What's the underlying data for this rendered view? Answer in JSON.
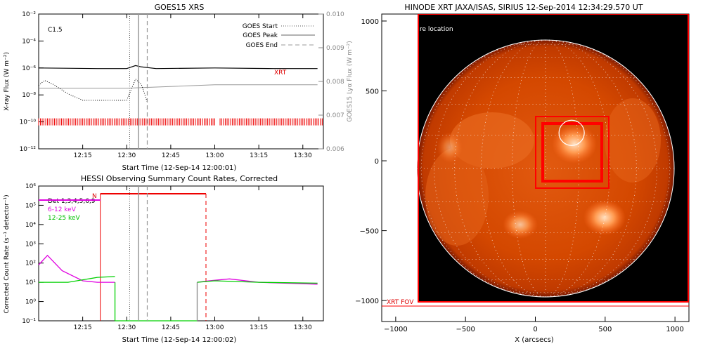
{
  "colors": {
    "red": "#ff0000",
    "magenta": "#e000e0",
    "green": "#00e000",
    "grey": "#888888",
    "sun_dark": "#000000",
    "sun_mid": "#d84400",
    "sun_bright": "#ffb070"
  },
  "chart_data": [
    {
      "type": "line",
      "title": "GOES15 XRS",
      "xlabel": "Start Time (12-Sep-14 12:00:01)",
      "ylabel": "X-ray Flux (W m⁻²)",
      "ylabel_right": "GOES15 Lyα Flux (W m⁻²)",
      "x_ticks": [
        "12:15",
        "12:30",
        "12:45",
        "13:00",
        "13:15",
        "13:30"
      ],
      "y_ticks": [
        "10⁻²",
        "10⁻⁴",
        "10⁻⁶",
        "10⁻⁸",
        "10⁻¹⁰",
        "10⁻¹²"
      ],
      "y_ticks_right": [
        "0.010",
        "0.009",
        "0.008",
        "0.007",
        "0.006"
      ],
      "ylim": [
        1e-12,
        0.01
      ],
      "ylim_right": [
        0.006,
        0.01
      ],
      "y_scale": "log",
      "annotation": "C1.5",
      "xrt_label": "XRT",
      "legend": [
        "GOES Start",
        "GOES Peak",
        "GOES End"
      ],
      "events": {
        "start": "12:31",
        "peak": "12:34",
        "end": "12:37"
      },
      "series": [
        {
          "name": "",
          "style": "solid-black",
          "x": [
            "12:00",
            "12:20",
            "12:30",
            "12:33",
            "12:35",
            "12:40",
            "13:00",
            "13:20",
            "13:35"
          ],
          "values": [
            1e-06,
            9e-07,
            9e-07,
            1.5e-06,
            1.2e-06,
            9e-07,
            1e-06,
            9e-07,
            9e-07
          ]
        },
        {
          "name": "",
          "style": "grey",
          "x": [
            "12:00",
            "12:30",
            "13:00",
            "13:35"
          ],
          "values": [
            0.0078,
            0.0078,
            0.0079,
            0.0079
          ]
        },
        {
          "name": "",
          "style": "dotted-black",
          "x": [
            "12:00",
            "12:02",
            "12:05",
            "12:10",
            "12:15",
            "12:30",
            "12:33",
            "12:35",
            "12:37"
          ],
          "values": [
            5e-08,
            1.2e-07,
            6e-08,
            1.2e-08,
            4e-09,
            4e-09,
            1.5e-07,
            6e-08,
            3e-09
          ]
        }
      ],
      "grid": false
    },
    {
      "type": "line",
      "title": "HESSI Observing Summary Count Rates, Corrected",
      "xlabel": "Start Time (12-Sep-14 12:00:02)",
      "ylabel": "Corrected Count Rate (s⁻¹ detector⁻¹)",
      "x_ticks": [
        "12:15",
        "12:30",
        "12:45",
        "13:00",
        "13:15",
        "13:30"
      ],
      "y_ticks": [
        "10⁶",
        "10⁵",
        "10⁴",
        "10³",
        "10²",
        "10¹",
        "10⁰",
        "10⁻¹"
      ],
      "ylim": [
        0.1,
        1000000.0
      ],
      "y_scale": "log",
      "night_label": "N",
      "legend": [
        "Det 1,3,4,5,6,9",
        "6-12 keV",
        "12-25 keV"
      ],
      "series": [
        {
          "name": "6-12 keV",
          "x": [
            "12:00",
            "12:03",
            "12:08",
            "12:15",
            "12:20",
            "12:26",
            "12:54",
            "12:58",
            "13:05",
            "13:15",
            "13:35"
          ],
          "values": [
            80,
            250,
            40,
            12,
            10,
            10,
            10,
            12,
            15,
            10,
            8
          ]
        },
        {
          "name": "12-25 keV",
          "x": [
            "12:00",
            "12:10",
            "12:20",
            "12:26",
            "12:54",
            "13:00",
            "13:15",
            "13:35"
          ],
          "values": [
            10,
            10,
            18,
            20,
            10,
            12,
            10,
            9
          ]
        }
      ],
      "grid": false
    },
    {
      "type": "heatmap",
      "title": "HINODE XRT JAXA/ISAS, SIRIUS 12-Sep-2014 12:34:29.570 UT",
      "xlabel": "X (arcsecs)",
      "ylabel": "",
      "x_ticks": [
        "−1000",
        "−500",
        "0",
        "500",
        "1000"
      ],
      "y_ticks": [
        "1000",
        "500",
        "0",
        "−500",
        "−1000"
      ],
      "xlim": [
        -1100,
        1100
      ],
      "ylim": [
        -1150,
        1050
      ],
      "flare_location": {
        "x": 260,
        "y": 200
      },
      "location_label": "re location",
      "fov_label": "XRT FOV"
    }
  ]
}
